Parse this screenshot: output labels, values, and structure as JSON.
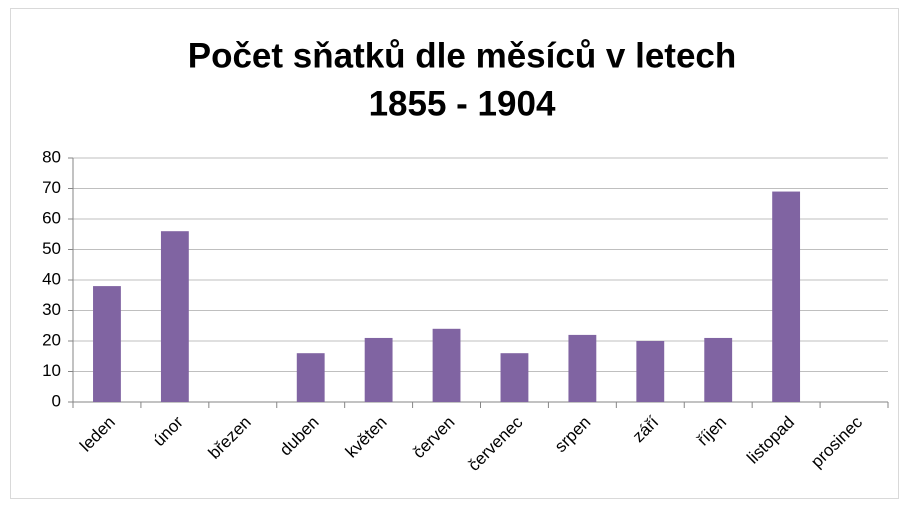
{
  "chart_data": {
    "type": "bar",
    "title": [
      "Počet sňatků dle měsíců v letech",
      "1855 - 1904"
    ],
    "categories": [
      "leden",
      "únor",
      "březen",
      "duben",
      "květen",
      "červen",
      "červenec",
      "srpen",
      "září",
      "říjen",
      "listopad",
      "prosinec"
    ],
    "values": [
      38,
      56,
      0,
      16,
      21,
      24,
      16,
      22,
      20,
      21,
      69,
      0
    ],
    "color": "#8064a2",
    "ylim": [
      0,
      80
    ],
    "yticks": [
      0,
      10,
      20,
      30,
      40,
      50,
      60,
      70,
      80
    ],
    "grid": true
  }
}
